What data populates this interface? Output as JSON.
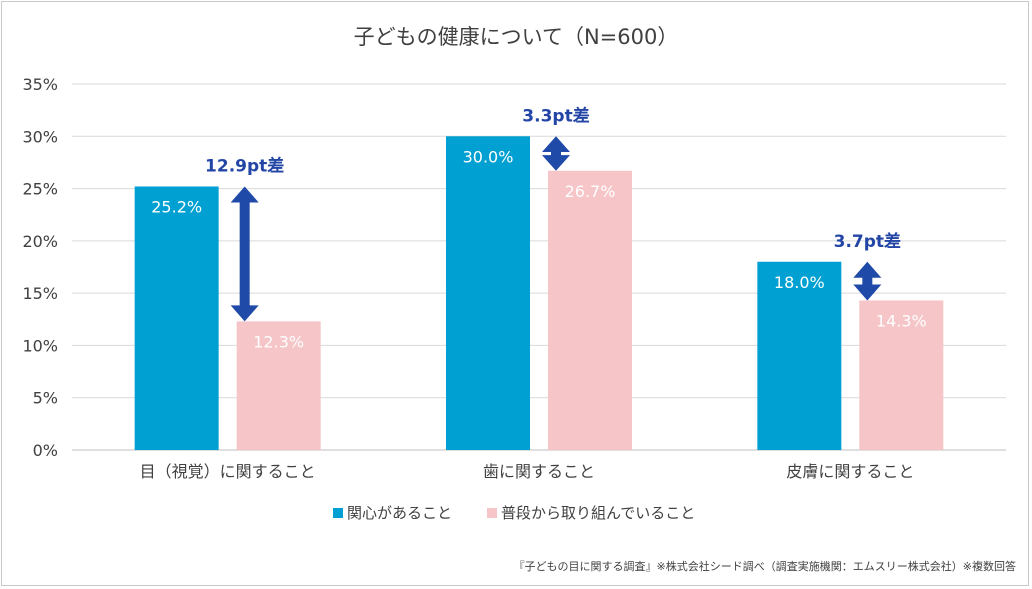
{
  "chart_data": {
    "type": "bar",
    "title": "子どもの健康について（N=600）",
    "categories": [
      "目（視覚）に関すること",
      "歯に関すること",
      "皮膚に関すること"
    ],
    "series": [
      {
        "name": "関心があること",
        "values": [
          25.2,
          30.0,
          18.0
        ],
        "labels": [
          "25.2%",
          "30.0%",
          "18.0%"
        ],
        "color": "#00a0d2"
      },
      {
        "name": "普段から取り組んでいること",
        "values": [
          12.3,
          26.7,
          14.3
        ],
        "labels": [
          "12.3%",
          "26.7%",
          "14.3%"
        ],
        "color": "#f6c5c8"
      }
    ],
    "differences": [
      "12.9pt差",
      "3.3pt差",
      "3.7pt差"
    ],
    "ylim": [
      0,
      35
    ],
    "yticks": [
      "0%",
      "5%",
      "10%",
      "15%",
      "20%",
      "25%",
      "30%",
      "35%"
    ],
    "grid": true,
    "legend_position": "bottom",
    "arrow_color": "#1f4aa8",
    "note": "『子どもの目に関する調査』※株式会社シード調べ（調査実施機関：エムスリー株式会社）※複数回答"
  }
}
